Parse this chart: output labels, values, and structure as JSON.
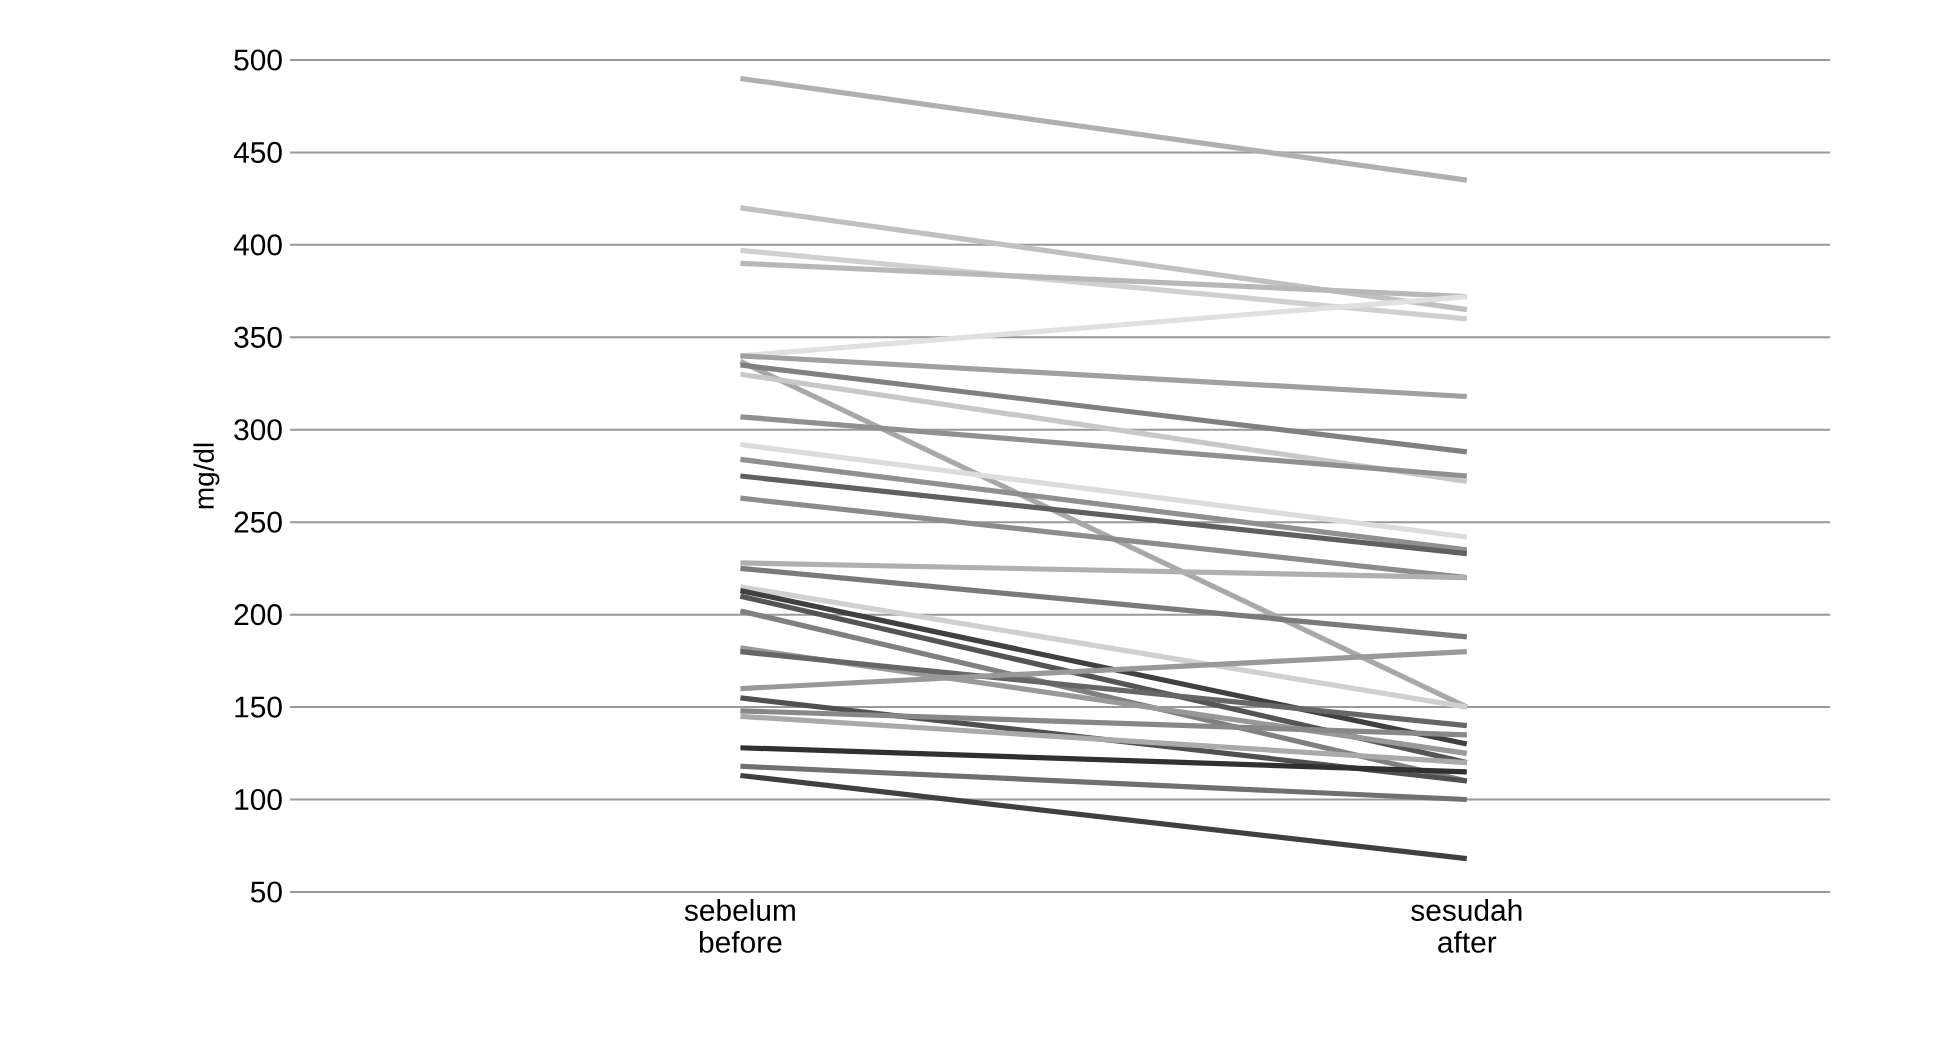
{
  "chart_data": {
    "type": "line",
    "ylabel": "mg/dl",
    "categories": [
      "sebelum before",
      "sesudah after"
    ],
    "ylim": [
      50,
      500
    ],
    "yticks": [
      50,
      100,
      150,
      200,
      250,
      300,
      350,
      400,
      450,
      500
    ],
    "grid": "y",
    "marker": "none",
    "line_style": "solid",
    "series": [
      {
        "color": "#b0b0b0",
        "values": [
          490,
          435
        ]
      },
      {
        "color": "#c0c0c0",
        "values": [
          420,
          365
        ]
      },
      {
        "color": "#d0d0d0",
        "values": [
          397,
          360
        ]
      },
      {
        "color": "#b8b8b8",
        "values": [
          390,
          372
        ]
      },
      {
        "color": "#e0e0e0",
        "values": [
          340,
          372
        ]
      },
      {
        "color": "#a0a0a0",
        "values": [
          340,
          318
        ]
      },
      {
        "color": "#a8a8a8",
        "values": [
          337,
          150
        ]
      },
      {
        "color": "#808080",
        "values": [
          335,
          288
        ]
      },
      {
        "color": "#c8c8c8",
        "values": [
          330,
          272
        ]
      },
      {
        "color": "#909090",
        "values": [
          307,
          275
        ]
      },
      {
        "color": "#dcdcdc",
        "values": [
          292,
          242
        ]
      },
      {
        "color": "#909090",
        "values": [
          284,
          235
        ]
      },
      {
        "color": "#606060",
        "values": [
          275,
          233
        ]
      },
      {
        "color": "#8c8c8c",
        "values": [
          263,
          220
        ]
      },
      {
        "color": "#b0b0b0",
        "values": [
          228,
          220
        ]
      },
      {
        "color": "#7a7a7a",
        "values": [
          225,
          188
        ]
      },
      {
        "color": "#d0d0d0",
        "values": [
          215,
          150
        ]
      },
      {
        "color": "#404040",
        "values": [
          213,
          130
        ]
      },
      {
        "color": "#555555",
        "values": [
          210,
          120
        ]
      },
      {
        "color": "#808080",
        "values": [
          202,
          110
        ]
      },
      {
        "color": "#999999",
        "values": [
          182,
          125
        ]
      },
      {
        "color": "#666666",
        "values": [
          180,
          140
        ]
      },
      {
        "color": "#999999",
        "values": [
          160,
          180
        ]
      },
      {
        "color": "#505050",
        "values": [
          155,
          110
        ]
      },
      {
        "color": "#888888",
        "values": [
          148,
          135
        ]
      },
      {
        "color": "#aaaaaa",
        "values": [
          145,
          120
        ]
      },
      {
        "color": "#303030",
        "values": [
          128,
          115
        ]
      },
      {
        "color": "#707070",
        "values": [
          118,
          100
        ]
      },
      {
        "color": "#404040",
        "values": [
          113,
          68
        ]
      }
    ]
  }
}
